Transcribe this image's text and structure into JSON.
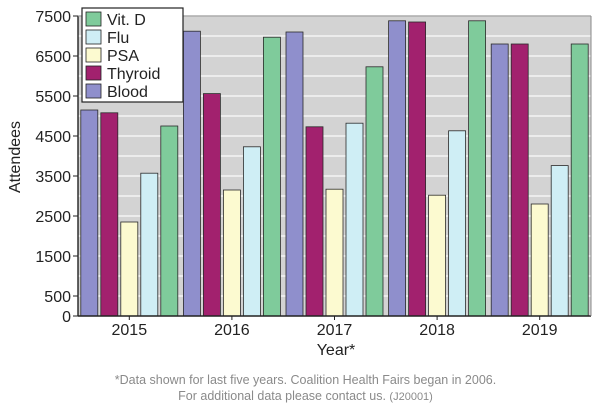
{
  "chart_data": {
    "type": "bar",
    "title": "",
    "xlabel": "Year*",
    "ylabel": "Attendees",
    "categories": [
      "2015",
      "2016",
      "2017",
      "2018",
      "2019"
    ],
    "ylim": [
      0,
      7500
    ],
    "yticks": [
      0,
      500,
      1500,
      2500,
      3500,
      4500,
      5500,
      6500,
      7500
    ],
    "grid": true,
    "legend_position": "top-left",
    "series": [
      {
        "name": "Blood",
        "color": "#8f8fcc",
        "values": [
          5150,
          7120,
          7100,
          7380,
          6800
        ]
      },
      {
        "name": "Thyroid",
        "color": "#a2216e",
        "values": [
          5080,
          5560,
          4730,
          7350,
          6800
        ]
      },
      {
        "name": "PSA",
        "color": "#fcfad0",
        "values": [
          2350,
          3150,
          3170,
          3020,
          2800
        ]
      },
      {
        "name": "Flu",
        "color": "#cfeef5",
        "values": [
          3570,
          4230,
          4820,
          4630,
          3760
        ]
      },
      {
        "name": "Vit. D",
        "color": "#7fcb9b",
        "values": [
          4750,
          6970,
          6230,
          7380,
          6800
        ]
      }
    ],
    "legend_order": [
      "Vit. D",
      "Flu",
      "PSA",
      "Thyroid",
      "Blood"
    ]
  },
  "footnote": {
    "line1": "*Data shown for last five years. Coalition Health Fairs began in 2006.",
    "line2": "For additional data please contact us.",
    "code": "(J20001)"
  }
}
